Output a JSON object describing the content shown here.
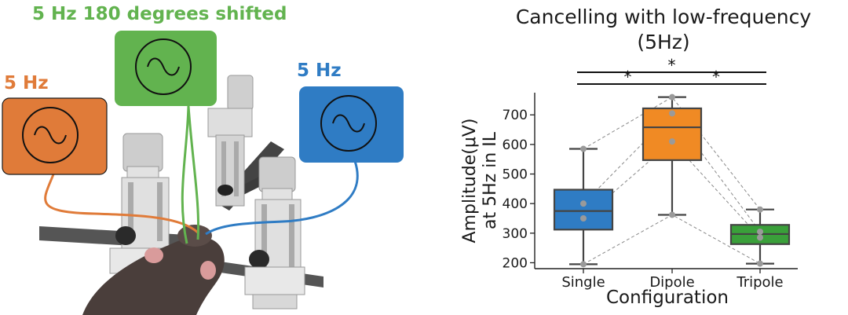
{
  "illustration": {
    "label_left": "5 Hz",
    "label_middle": "5 Hz 180 degrees shifted",
    "label_right": "5 Hz",
    "colors": {
      "orange": "#e07b39",
      "green": "#62b34f",
      "blue": "#2f7cc4"
    },
    "icons": [
      "sine-wave-generator-icon",
      "sine-wave-generator-icon",
      "sine-wave-generator-icon",
      "rat-illustration",
      "stereotaxic-frame"
    ]
  },
  "chart_data": {
    "type": "box",
    "title": "Cancelling with low-frequency",
    "subtitle": "(5Hz)",
    "xlabel": "Configuration",
    "ylabel_line1": "Amplitude(μV)",
    "ylabel_line2": "at 5Hz in IL",
    "categories": [
      "Single",
      "Dipole",
      "Tripole"
    ],
    "yticks": [
      200,
      300,
      400,
      500,
      600,
      700
    ],
    "ylim": [
      180,
      775
    ],
    "colors": [
      "#2f7cc4",
      "#f08a24",
      "#3aa03a"
    ],
    "boxes": [
      {
        "min": 195,
        "q1": 312,
        "median": 375,
        "q3": 447,
        "max": 585
      },
      {
        "min": 362,
        "q1": 547,
        "median": 658,
        "q3": 722,
        "max": 760
      },
      {
        "min": 197,
        "q1": 263,
        "median": 297,
        "q3": 328,
        "max": 380
      }
    ],
    "points": [
      [
        195,
        350,
        400,
        585
      ],
      [
        362,
        610,
        705,
        760
      ],
      [
        197,
        285,
        305,
        380
      ]
    ],
    "pairs": [
      [
        195,
        362,
        197
      ],
      [
        350,
        610,
        285
      ],
      [
        400,
        705,
        305
      ],
      [
        585,
        760,
        380
      ]
    ],
    "significance": [
      {
        "from": 0,
        "to": 1,
        "label": "*"
      },
      {
        "from": 1,
        "to": 2,
        "label": "*"
      },
      {
        "from": 0,
        "to": 2,
        "label": "*"
      }
    ]
  }
}
